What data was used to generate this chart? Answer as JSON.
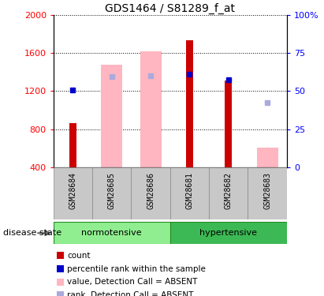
{
  "title": "GDS1464 / S81289_f_at",
  "samples": [
    "GSM28684",
    "GSM28685",
    "GSM28686",
    "GSM28681",
    "GSM28682",
    "GSM28683"
  ],
  "ylim_left": [
    400,
    2000
  ],
  "ylim_right": [
    0,
    100
  ],
  "left_ticks": [
    400,
    800,
    1200,
    1600,
    2000
  ],
  "right_ticks": [
    0,
    25,
    50,
    75,
    100
  ],
  "count_bars": [
    860,
    null,
    null,
    1730,
    1310,
    null
  ],
  "absent_value_bars": [
    null,
    1480,
    1620,
    null,
    null,
    610
  ],
  "percentile_rank_markers": [
    1210,
    null,
    null,
    1380,
    1320,
    null
  ],
  "absent_rank_markers": [
    null,
    1350,
    1360,
    null,
    null,
    1080
  ],
  "count_color": "#CC0000",
  "percentile_color": "#0000CC",
  "absent_value_color": "#FFB6C1",
  "absent_rank_color": "#AAAADD",
  "absent_bar_width": 0.55,
  "count_bar_width": 0.18,
  "marker_size": 5,
  "normotensive_color": "#90EE90",
  "hypertensive_color": "#3CB954",
  "sample_box_color": "#C8C8C8",
  "disease_state_label": "disease state",
  "legend_items": [
    {
      "label": "count",
      "color": "#CC0000"
    },
    {
      "label": "percentile rank within the sample",
      "color": "#0000CC"
    },
    {
      "label": "value, Detection Call = ABSENT",
      "color": "#FFB6C1"
    },
    {
      "label": "rank, Detection Call = ABSENT",
      "color": "#AAAADD"
    }
  ]
}
